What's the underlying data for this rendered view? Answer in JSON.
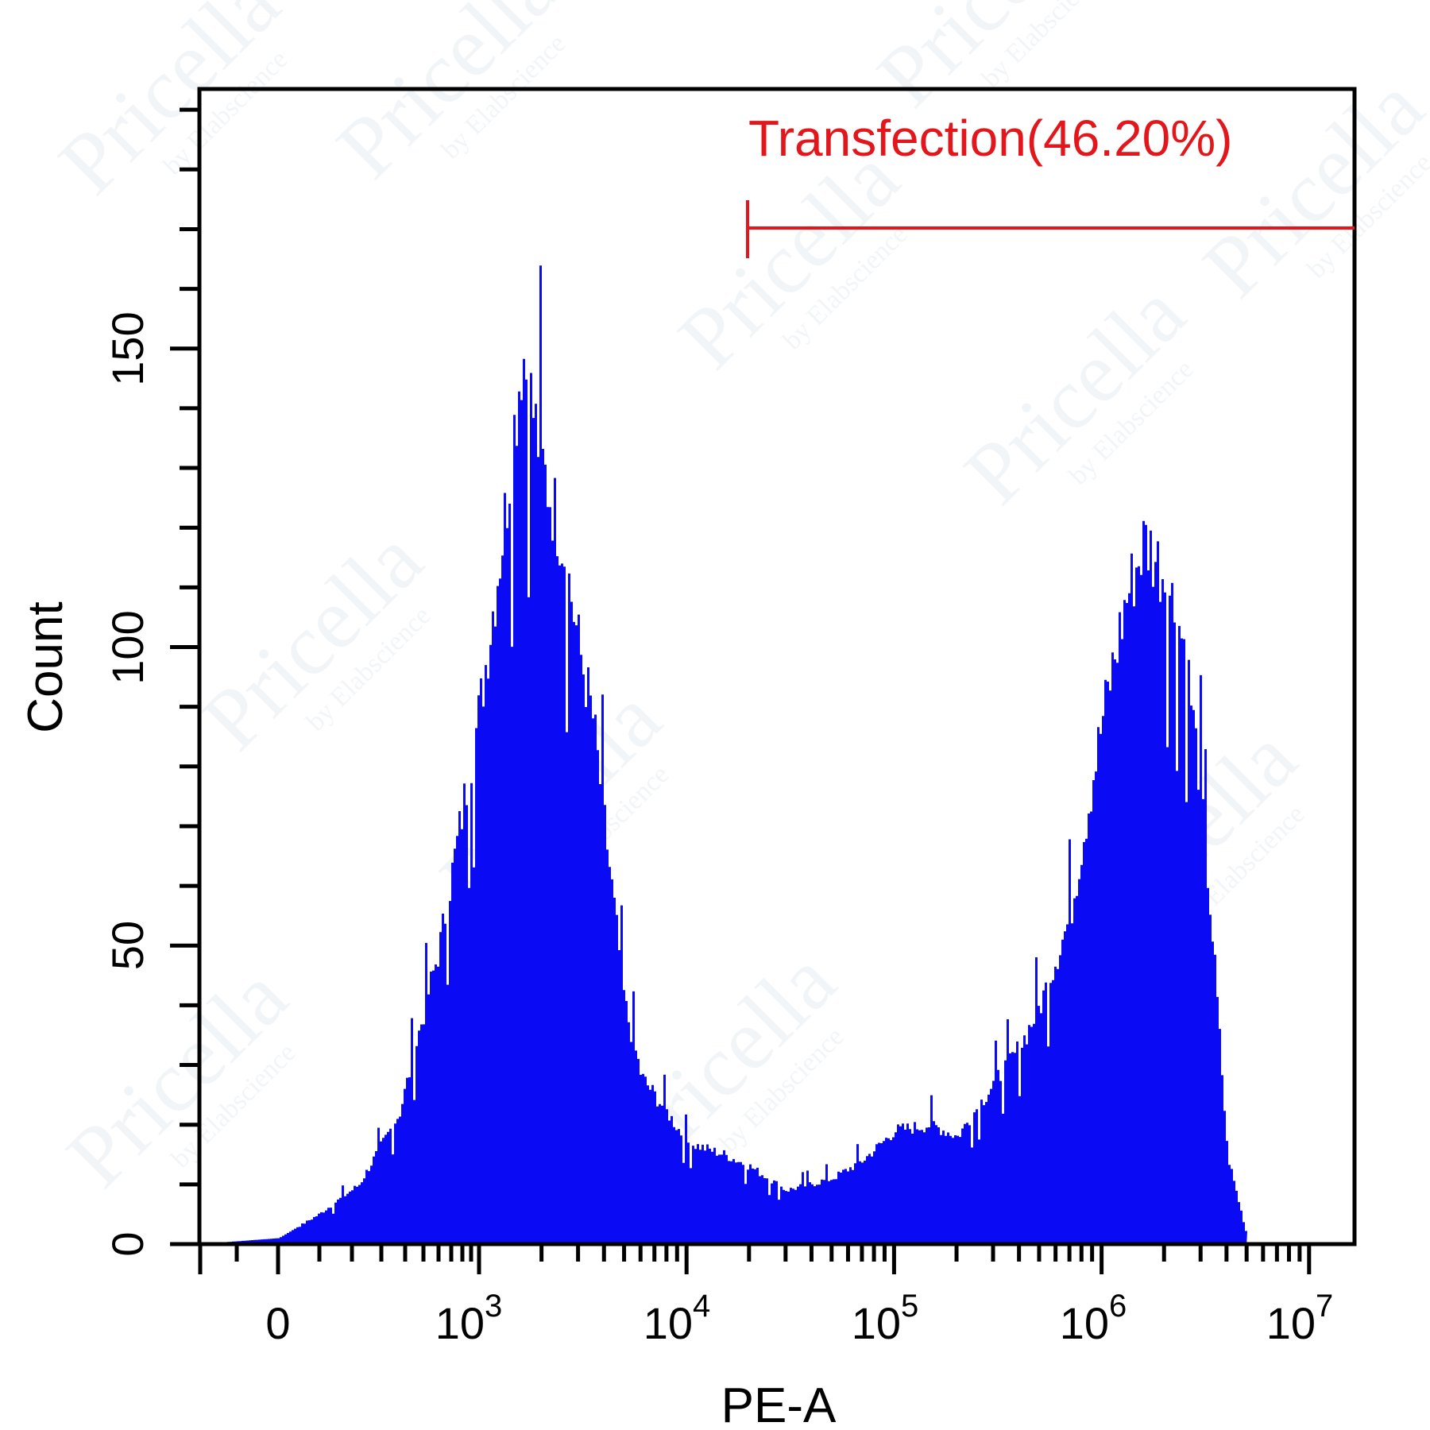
{
  "colors": {
    "histogram_fill": "#0a0af5",
    "gate": "#e3161c",
    "axis": "#000000"
  },
  "watermark": {
    "text": "Pricella",
    "sub": "by Elabscience"
  },
  "gate": {
    "label": "Transfection(46.20%)",
    "name": "Transfection",
    "percent": 46.2,
    "start": 20000,
    "end": 10000000
  },
  "chart_data": {
    "type": "area",
    "title": "",
    "xlabel": "PE-A",
    "ylabel": "Count",
    "x_scale": "biexponential (log above 10^3)",
    "x_ticks": [
      "0",
      "10^3",
      "10^4",
      "10^5",
      "10^6",
      "10^7"
    ],
    "y_ticks": [
      0,
      50,
      100,
      150
    ],
    "ylim": [
      0,
      190
    ],
    "grid": false,
    "legend": null,
    "annotations": [
      {
        "text": "Transfection(46.20%)",
        "type": "gate",
        "x_range": [
          20000,
          10000000
        ]
      }
    ],
    "series": [
      {
        "name": "PE-A histogram",
        "x": [
          "-300",
          "0",
          "200",
          "400",
          "600",
          "800",
          "1000",
          "1300",
          "1600",
          "2000",
          "2500",
          "3000",
          "3500",
          "4000",
          "5000",
          "6000",
          "8000",
          "10000",
          "15000",
          "20000",
          "30000",
          "50000",
          "70000",
          "100000",
          "150000",
          "200000",
          "300000",
          "400000",
          "500000",
          "700000",
          "1000000",
          "1300000",
          "1600000",
          "2000000",
          "2500000",
          "3000000",
          "3500000",
          "4000000",
          "5000000"
        ],
        "values": [
          0,
          1,
          5,
          10,
          22,
          50,
          90,
          120,
          150,
          130,
          118,
          100,
          88,
          70,
          40,
          28,
          22,
          17,
          15,
          13,
          9,
          11,
          14,
          19,
          20,
          18,
          27,
          33,
          40,
          55,
          88,
          108,
          118,
          112,
          100,
          75,
          45,
          15,
          1
        ]
      }
    ]
  },
  "axes": {
    "x": {
      "title": "PE-A",
      "ticks": [
        {
          "label": "0",
          "base": "0",
          "exp": ""
        },
        {
          "label": "10^3",
          "base": "10",
          "exp": "3"
        },
        {
          "label": "10^4",
          "base": "10",
          "exp": "4"
        },
        {
          "label": "10^5",
          "base": "10",
          "exp": "5"
        },
        {
          "label": "10^6",
          "base": "10",
          "exp": "6"
        },
        {
          "label": "10^7",
          "base": "10",
          "exp": "7"
        }
      ]
    },
    "y": {
      "title": "Count",
      "ticks": [
        "0",
        "50",
        "100",
        "150"
      ]
    }
  }
}
